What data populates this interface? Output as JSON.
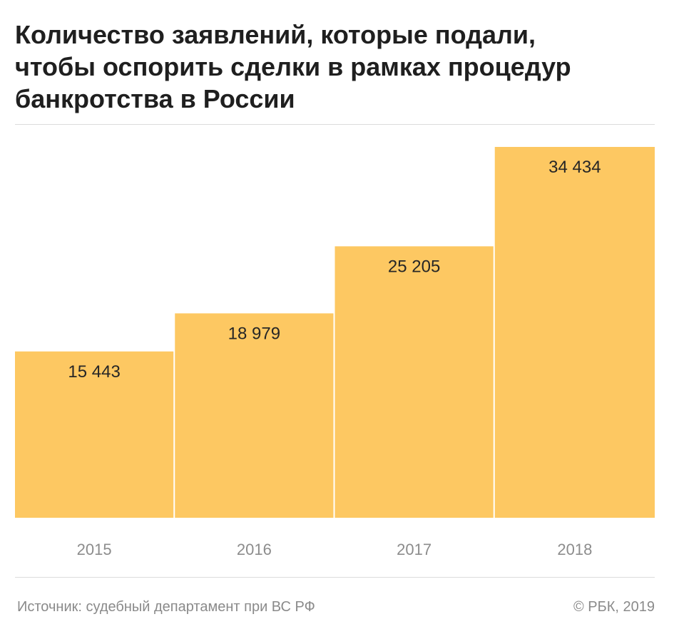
{
  "title_lines": [
    "Количество заявлений, которые подали,",
    "чтобы оспорить сделки в рамках процедур",
    "банкротства в России"
  ],
  "source": "Источник: судебный департамент при ВС РФ",
  "copyright": "© РБК, 2019",
  "colors": {
    "bar": "#fdc862",
    "tick_text": "#8c8c8c",
    "rule": "#dcdcdc"
  },
  "chart_data": {
    "type": "bar",
    "categories": [
      "2015",
      "2016",
      "2017",
      "2018"
    ],
    "values": [
      15443,
      18979,
      25205,
      34434
    ],
    "value_labels": [
      "15 443",
      "18 979",
      "25 205",
      "34 434"
    ],
    "title": "Количество заявлений, которые подали, чтобы оспорить сделки в рамках процедур банкротства в России",
    "xlabel": "",
    "ylabel": "",
    "ylim": [
      0,
      34434
    ],
    "grid": false,
    "legend": "none"
  }
}
